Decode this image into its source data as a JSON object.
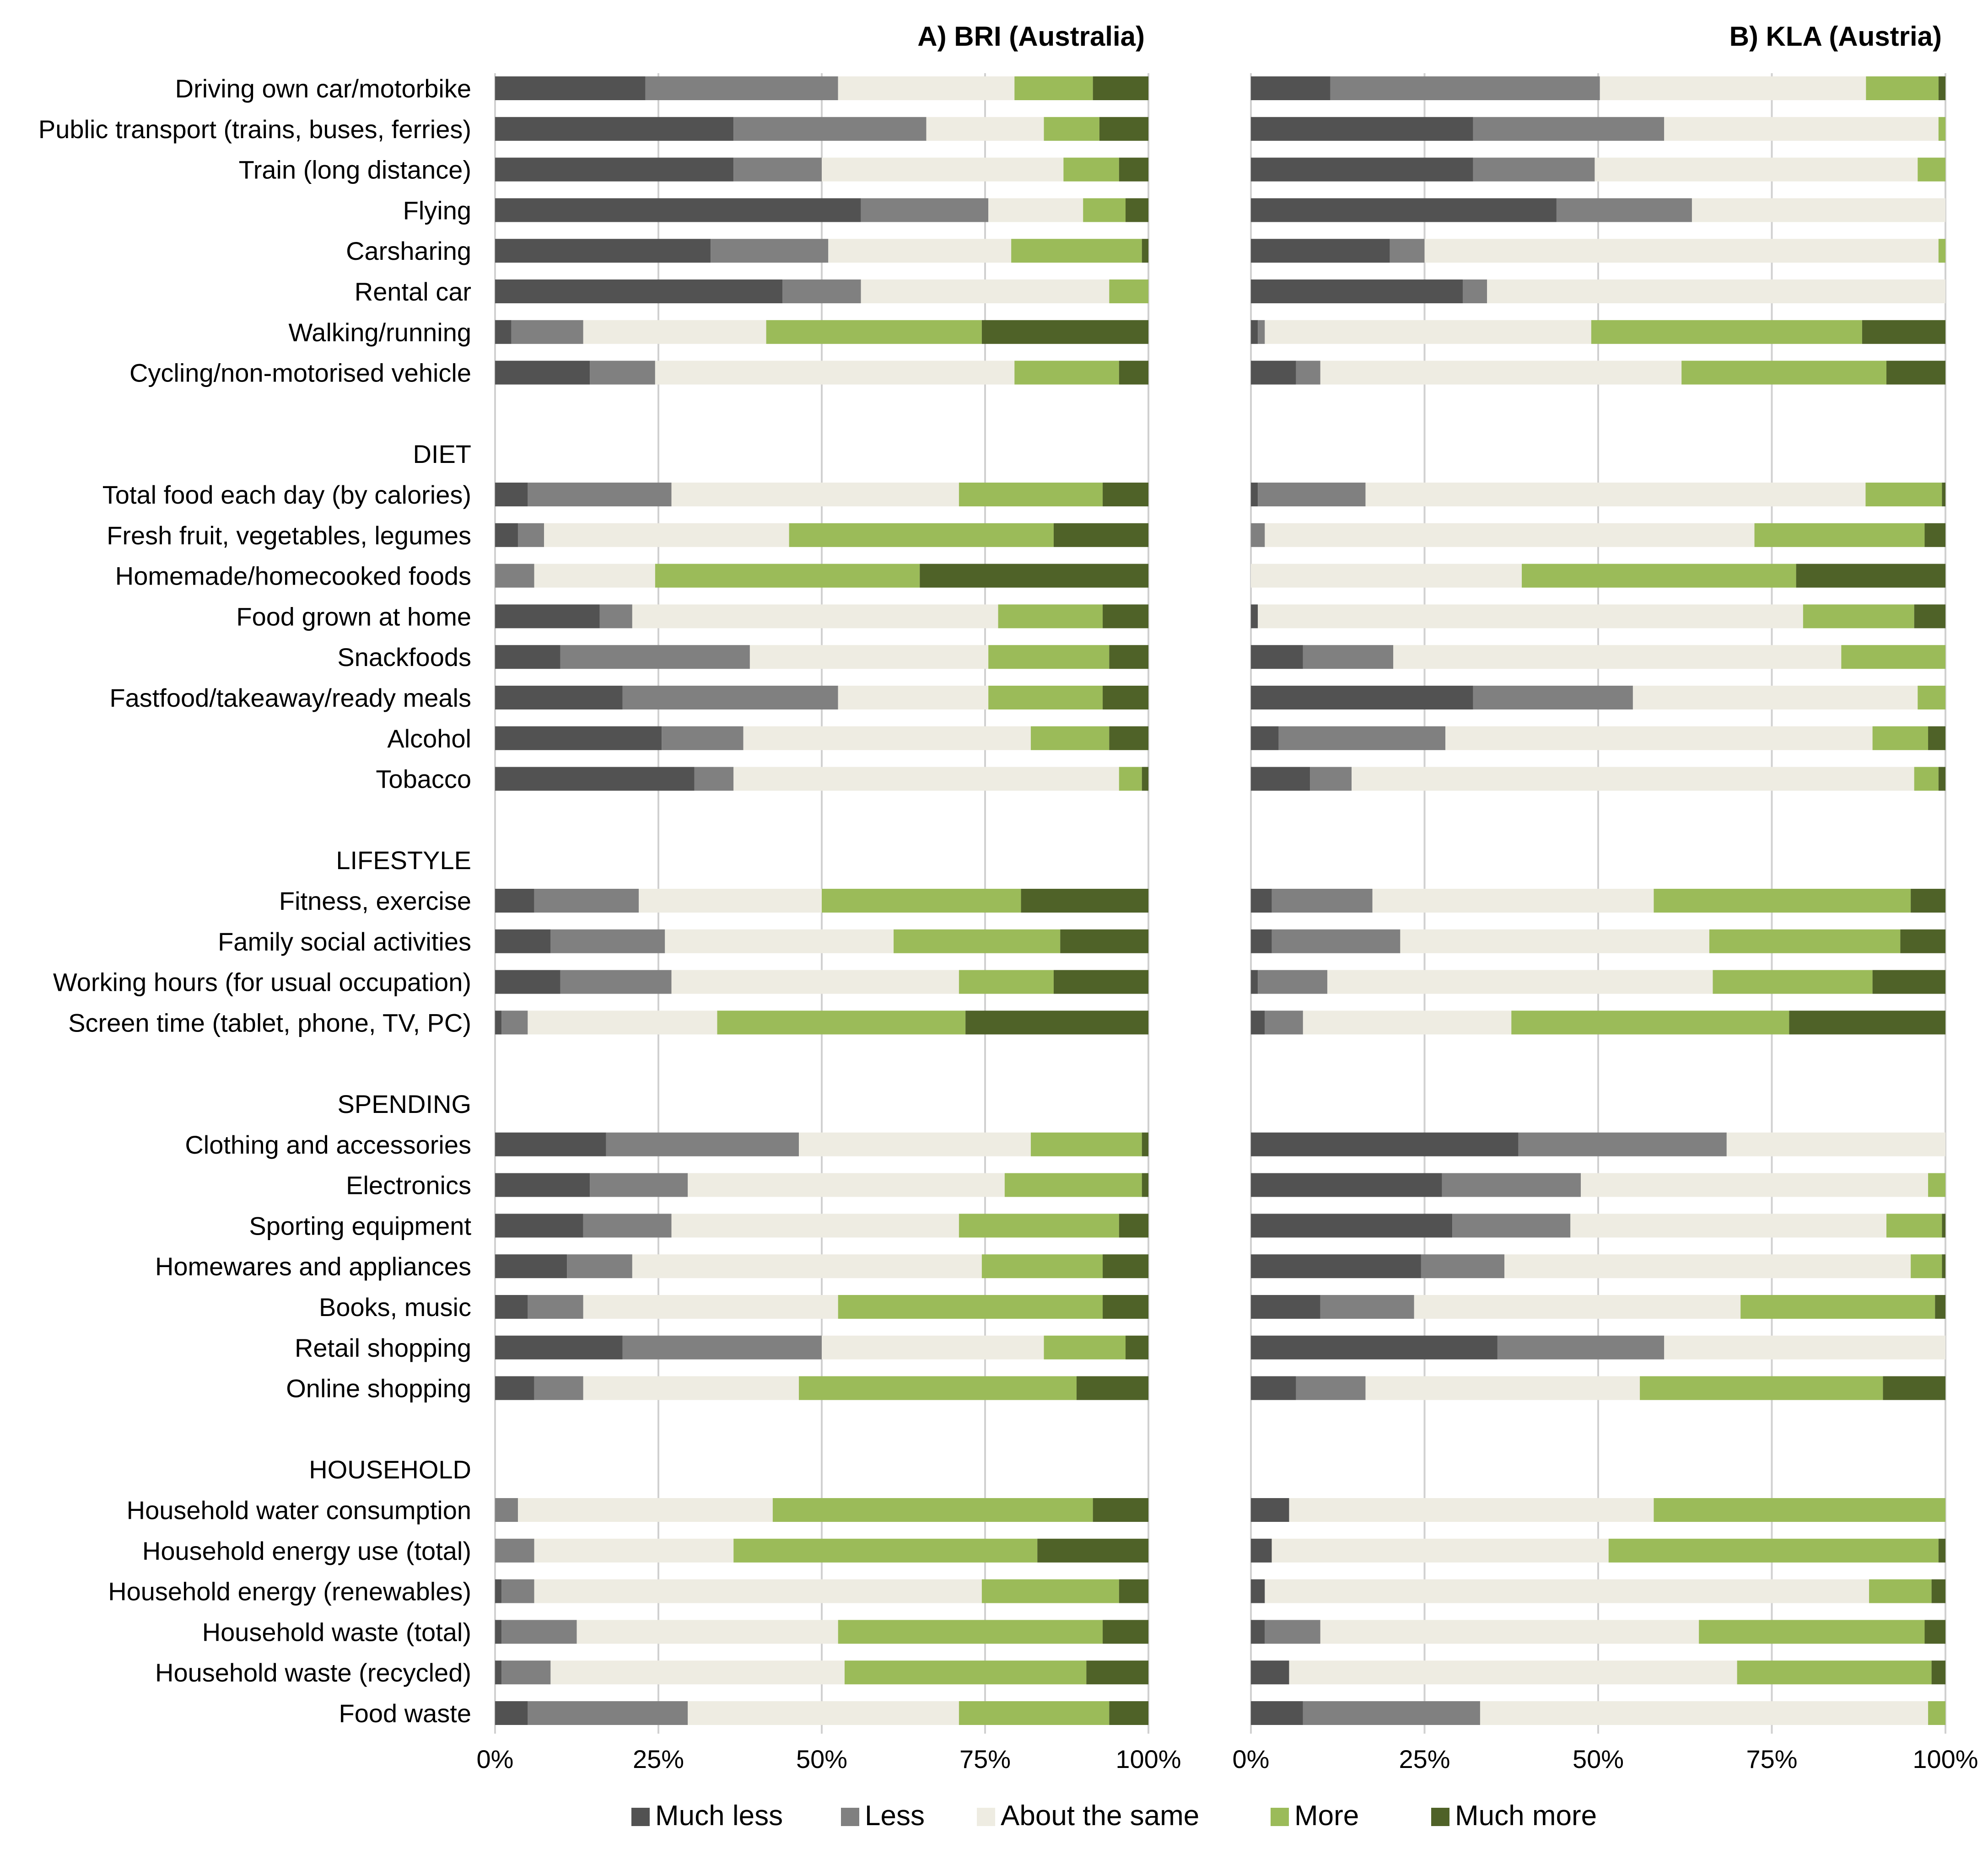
{
  "chart_data": {
    "type": "bar",
    "orientation": "horizontal",
    "stacked": true,
    "xlim": [
      0,
      100
    ],
    "x_ticks": [
      "0%",
      "25%",
      "50%",
      "75%",
      "100%"
    ],
    "legend_position": "bottom",
    "colors": {
      "Much less": "#525252",
      "Less": "#808080",
      "About the same": "#eeece2",
      "More": "#9bbb59",
      "Much more": "#4f6228"
    },
    "legend": [
      "Much less",
      "Less",
      "About the same",
      "More",
      "Much more"
    ],
    "rows": [
      {
        "type": "item",
        "label": "Driving own car/motorbike"
      },
      {
        "type": "item",
        "label": "Public transport (trains, buses, ferries)"
      },
      {
        "type": "item",
        "label": "Train (long distance)"
      },
      {
        "type": "item",
        "label": "Flying"
      },
      {
        "type": "item",
        "label": "Carsharing"
      },
      {
        "type": "item",
        "label": "Rental car"
      },
      {
        "type": "item",
        "label": "Walking/running"
      },
      {
        "type": "item",
        "label": "Cycling/non-motorised vehicle"
      },
      {
        "type": "blank",
        "label": ""
      },
      {
        "type": "header",
        "label": "DIET"
      },
      {
        "type": "item",
        "label": "Total food each day (by calories)"
      },
      {
        "type": "item",
        "label": "Fresh fruit, vegetables, legumes"
      },
      {
        "type": "item",
        "label": "Homemade/homecooked foods"
      },
      {
        "type": "item",
        "label": "Food grown at home"
      },
      {
        "type": "item",
        "label": "Snackfoods"
      },
      {
        "type": "item",
        "label": "Fastfood/takeaway/ready meals"
      },
      {
        "type": "item",
        "label": "Alcohol"
      },
      {
        "type": "item",
        "label": "Tobacco"
      },
      {
        "type": "blank",
        "label": ""
      },
      {
        "type": "header",
        "label": "LIFESTYLE"
      },
      {
        "type": "item",
        "label": "Fitness, exercise"
      },
      {
        "type": "item",
        "label": "Family social activities"
      },
      {
        "type": "item",
        "label": "Working hours (for usual occupation)"
      },
      {
        "type": "item",
        "label": "Screen time (tablet, phone, TV, PC)"
      },
      {
        "type": "blank",
        "label": ""
      },
      {
        "type": "header",
        "label": "SPENDING"
      },
      {
        "type": "item",
        "label": "Clothing and accessories"
      },
      {
        "type": "item",
        "label": "Electronics"
      },
      {
        "type": "item",
        "label": "Sporting equipment"
      },
      {
        "type": "item",
        "label": "Homewares and appliances"
      },
      {
        "type": "item",
        "label": "Books, music"
      },
      {
        "type": "item",
        "label": "Retail shopping"
      },
      {
        "type": "item",
        "label": "Online shopping"
      },
      {
        "type": "blank",
        "label": ""
      },
      {
        "type": "header",
        "label": "HOUSEHOLD"
      },
      {
        "type": "item",
        "label": "Household water consumption"
      },
      {
        "type": "item",
        "label": "Household energy use (total)"
      },
      {
        "type": "item",
        "label": "Household energy (renewables)"
      },
      {
        "type": "item",
        "label": "Household waste (total)"
      },
      {
        "type": "item",
        "label": "Household waste (recycled)"
      },
      {
        "type": "item",
        "label": "Food waste"
      }
    ],
    "panels": [
      {
        "title": "A) BRI (Australia)",
        "values": [
          [
            23,
            29.5,
            27,
            12,
            8.5
          ],
          [
            36.5,
            29.5,
            18,
            8.5,
            7.5
          ],
          [
            36.5,
            13.5,
            37,
            8.5,
            4.5
          ],
          [
            56,
            19.5,
            14.5,
            6.5,
            3.5
          ],
          [
            33,
            18,
            28,
            20,
            1
          ],
          [
            44,
            12,
            38,
            6,
            0
          ],
          [
            2.5,
            11,
            28,
            33,
            25.5
          ],
          [
            14.5,
            10,
            55,
            16,
            4.5
          ],
          null,
          null,
          [
            5,
            22,
            44,
            22,
            7
          ],
          [
            3.5,
            4,
            37.5,
            40.5,
            14.5
          ],
          [
            0,
            6,
            18.5,
            40.5,
            35
          ],
          [
            16,
            5,
            56,
            16,
            7
          ],
          [
            10,
            29,
            36.5,
            18.5,
            6
          ],
          [
            19.5,
            33,
            23,
            17.5,
            7
          ],
          [
            25.5,
            12.5,
            44,
            12,
            6
          ],
          [
            30.5,
            6,
            59,
            3.5,
            1
          ],
          null,
          null,
          [
            6,
            16,
            28,
            30.5,
            19.5
          ],
          [
            8.5,
            17.5,
            35,
            25.5,
            13.5
          ],
          [
            10,
            17,
            44,
            14.5,
            14.5
          ],
          [
            1,
            4,
            29,
            38,
            28
          ],
          null,
          null,
          [
            17,
            29.5,
            35.5,
            17,
            1
          ],
          [
            14.5,
            15,
            48.5,
            21,
            1
          ],
          [
            13.5,
            13.5,
            44,
            24.5,
            4.5
          ],
          [
            11,
            10,
            53.5,
            18.5,
            7
          ],
          [
            5,
            8.5,
            39,
            40.5,
            7
          ],
          [
            19.5,
            30.5,
            34,
            12.5,
            3.5
          ],
          [
            6,
            7.5,
            33,
            42.5,
            11
          ],
          null,
          null,
          [
            0,
            3.5,
            39,
            49,
            8.5
          ],
          [
            0,
            6,
            30.5,
            46.5,
            17
          ],
          [
            1,
            5,
            68.5,
            21,
            4.5
          ],
          [
            1,
            11.5,
            40,
            40.5,
            7
          ],
          [
            1,
            7.5,
            45,
            37,
            9.5
          ],
          [
            5,
            24.5,
            41.5,
            23,
            6
          ]
        ]
      },
      {
        "title": "B) KLA (Austria)",
        "values": [
          [
            11.5,
            39,
            38.5,
            10.5,
            1
          ],
          [
            32,
            27.5,
            39.5,
            1,
            0
          ],
          [
            32,
            17.5,
            46.5,
            4,
            0
          ],
          [
            44,
            19.5,
            36.5,
            0,
            0
          ],
          [
            20,
            5,
            74,
            1,
            0
          ],
          [
            30.5,
            3.5,
            66,
            0,
            0
          ],
          [
            1,
            1,
            47,
            39,
            12
          ],
          [
            6.5,
            3.5,
            52,
            29.5,
            8.5
          ],
          null,
          null,
          [
            1,
            15.5,
            72,
            11,
            0.5
          ],
          [
            0,
            2,
            70.5,
            24.5,
            3
          ],
          [
            0,
            0,
            39,
            39.5,
            21.5
          ],
          [
            1,
            0,
            78.5,
            16,
            4.5
          ],
          [
            7.5,
            13,
            64.5,
            15,
            0
          ],
          [
            32,
            23,
            41,
            4,
            0
          ],
          [
            4,
            24,
            61.5,
            8,
            2.5
          ],
          [
            8.5,
            6,
            81,
            3.5,
            1
          ],
          null,
          null,
          [
            3,
            14.5,
            40.5,
            37,
            5
          ],
          [
            3,
            18.5,
            44.5,
            27.5,
            6.5
          ],
          [
            1,
            10,
            55.5,
            23,
            10.5
          ],
          [
            2,
            5.5,
            30,
            40,
            22.5
          ],
          null,
          null,
          [
            38.5,
            30,
            31.5,
            0,
            0
          ],
          [
            27.5,
            20,
            50,
            2.5,
            0
          ],
          [
            29,
            17,
            45.5,
            8,
            0.5
          ],
          [
            24.5,
            12,
            58.5,
            4.5,
            0.5
          ],
          [
            10,
            13.5,
            47,
            28,
            1.5
          ],
          [
            35.5,
            24,
            40.5,
            0,
            0
          ],
          [
            6.5,
            10,
            39.5,
            35,
            9
          ],
          null,
          null,
          [
            5.5,
            0,
            52.5,
            42,
            0
          ],
          [
            3,
            0,
            48.5,
            47.5,
            1
          ],
          [
            2,
            0,
            87,
            9,
            2
          ],
          [
            2,
            8,
            54.5,
            32.5,
            3
          ],
          [
            5.5,
            0,
            64.5,
            28,
            2
          ],
          [
            7.5,
            25.5,
            64.5,
            2.5,
            0
          ]
        ]
      }
    ]
  }
}
